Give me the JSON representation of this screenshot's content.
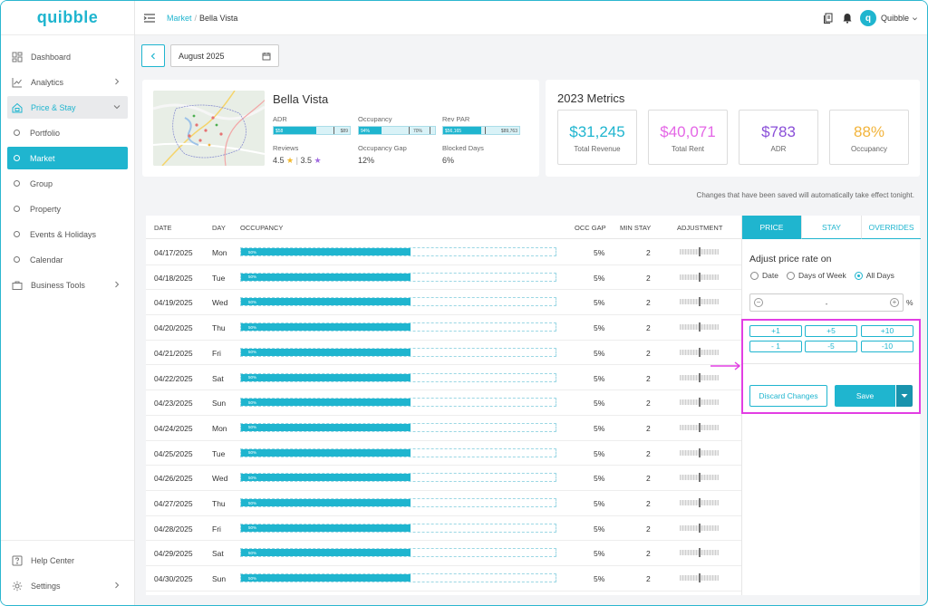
{
  "brand": {
    "logo_text": "quibble",
    "accent": "#1fb5cf",
    "highlight": "#e23ee3"
  },
  "sidebar": {
    "items": [
      {
        "label": "Dashboard",
        "icon": "dashboard-icon"
      },
      {
        "label": "Analytics",
        "icon": "chart-icon"
      },
      {
        "label": "Price & Stay",
        "icon": "house-tag-icon"
      }
    ],
    "sub_items": [
      {
        "label": "Portfolio"
      },
      {
        "label": "Market"
      },
      {
        "label": "Group"
      },
      {
        "label": "Property"
      },
      {
        "label": "Events & Holidays"
      },
      {
        "label": "Calendar"
      }
    ],
    "business_tools": "Business Tools",
    "help_center": "Help Center",
    "settings": "Settings"
  },
  "header": {
    "breadcrumb_parent": "Market",
    "breadcrumb_sep": "/",
    "breadcrumb_current": "Bella Vista",
    "user_name": "Quibble",
    "avatar_letter": "q"
  },
  "date_picker": {
    "value": "August 2025"
  },
  "property": {
    "name": "Bella Vista",
    "adr_label": "ADR",
    "adr_left": "$58",
    "adr_right": "$89",
    "adr_fill": 0.56,
    "occupancy_label": "Occupancy",
    "occupancy_left": "94%",
    "occupancy_right": "70%",
    "occupancy_fill": 0.3,
    "revpar_label": "Rev PAR",
    "revpar_left": "$56,165",
    "revpar_right": "$89,763",
    "revpar_fill": 0.5,
    "reviews_label": "Reviews",
    "reviews_a": "4.5",
    "reviews_b": "3.5",
    "occ_gap_label": "Occupancy Gap",
    "occ_gap_value": "12%",
    "blocked_label": "Blocked Days",
    "blocked_value": "6%"
  },
  "metrics": {
    "title": "2023 Metrics",
    "items": [
      {
        "value": "$31,245",
        "label": "Total Revenue",
        "color": "#1fb5cf"
      },
      {
        "value": "$40,071",
        "label": "Total Rent",
        "color": "#e466e6"
      },
      {
        "value": "$783",
        "label": "ADR",
        "color": "#8a4fd8"
      },
      {
        "value": "88%",
        "label": "Occupancy",
        "color": "#f2b43c"
      }
    ]
  },
  "notice": "Changes that have been saved will automatically take effect tonight.",
  "table": {
    "headers": {
      "date": "DATE",
      "day": "DAY",
      "occupancy": "OCCUPANCY",
      "occ_gap": "OCC GAP",
      "min_stay": "MIN STAY",
      "adjustment": "ADJUSTMENT"
    },
    "rows": [
      {
        "date": "04/17/2025",
        "day": "Mon",
        "occ": "50%",
        "occ_gap": "5%",
        "min_stay": "2"
      },
      {
        "date": "04/18/2025",
        "day": "Tue",
        "occ": "50%",
        "occ_gap": "5%",
        "min_stay": "2"
      },
      {
        "date": "04/19/2025",
        "day": "Wed",
        "occ": "50%",
        "occ_gap": "5%",
        "min_stay": "2"
      },
      {
        "date": "04/20/2025",
        "day": "Thu",
        "occ": "50%",
        "occ_gap": "5%",
        "min_stay": "2"
      },
      {
        "date": "04/21/2025",
        "day": "Fri",
        "occ": "50%",
        "occ_gap": "5%",
        "min_stay": "2"
      },
      {
        "date": "04/22/2025",
        "day": "Sat",
        "occ": "50%",
        "occ_gap": "5%",
        "min_stay": "2"
      },
      {
        "date": "04/23/2025",
        "day": "Sun",
        "occ": "50%",
        "occ_gap": "5%",
        "min_stay": "2"
      },
      {
        "date": "04/24/2025",
        "day": "Mon",
        "occ": "50%",
        "occ_gap": "5%",
        "min_stay": "2"
      },
      {
        "date": "04/25/2025",
        "day": "Tue",
        "occ": "50%",
        "occ_gap": "5%",
        "min_stay": "2"
      },
      {
        "date": "04/26/2025",
        "day": "Wed",
        "occ": "50%",
        "occ_gap": "5%",
        "min_stay": "2"
      },
      {
        "date": "04/27/2025",
        "day": "Thu",
        "occ": "50%",
        "occ_gap": "5%",
        "min_stay": "2"
      },
      {
        "date": "04/28/2025",
        "day": "Fri",
        "occ": "50%",
        "occ_gap": "5%",
        "min_stay": "2"
      },
      {
        "date": "04/29/2025",
        "day": "Sat",
        "occ": "50%",
        "occ_gap": "5%",
        "min_stay": "2"
      },
      {
        "date": "04/30/2025",
        "day": "Sun",
        "occ": "50%",
        "occ_gap": "5%",
        "min_stay": "2"
      }
    ]
  },
  "panel": {
    "tabs": [
      "PRICE",
      "STAY",
      "OVERRIDES"
    ],
    "title": "Adjust price rate on",
    "radios": [
      "Date",
      "Days of Week",
      "All Days"
    ],
    "selected_radio": "All Days",
    "stepper_value": "-",
    "percent": "%",
    "quick_buttons": [
      "+1",
      "+5",
      "+10",
      "- 1",
      "-5",
      "-10"
    ],
    "discard_label": "Discard Changes",
    "save_label": "Save"
  }
}
